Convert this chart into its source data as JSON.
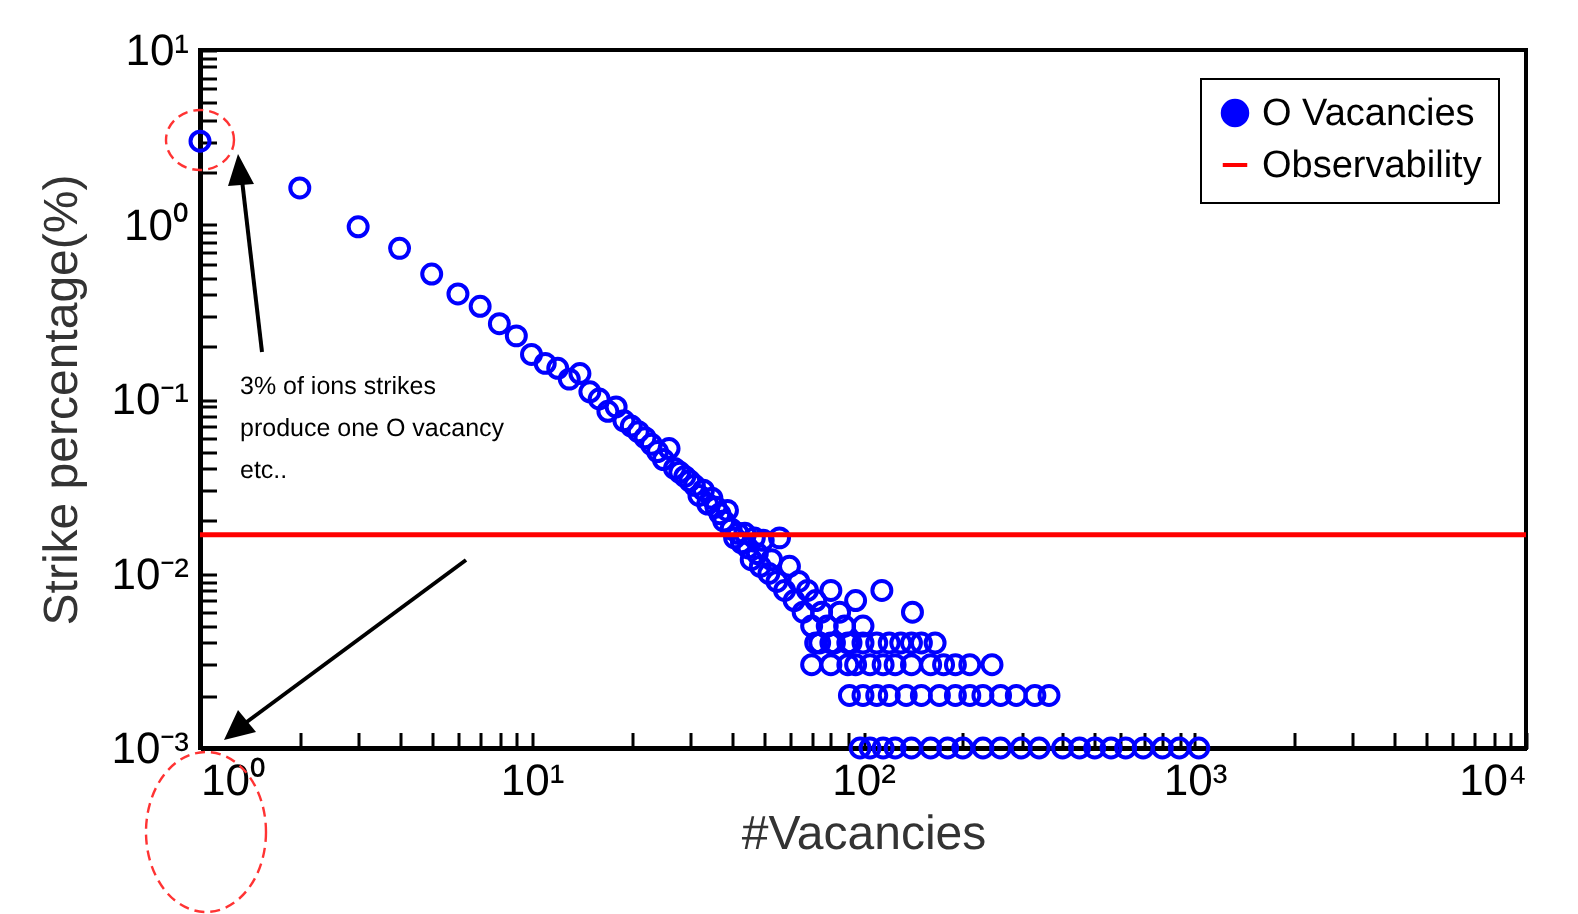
{
  "chart_data": {
    "type": "scatter",
    "xlabel": "#Vacancies",
    "ylabel": "Strike percentage(%)",
    "log": "xy",
    "marker": "circle",
    "legend": "top right",
    "grid": false,
    "xlim": [
      1,
      10000
    ],
    "ylim": [
      0.001,
      10
    ],
    "xticks": [
      {
        "value": 1,
        "label": "10⁰"
      },
      {
        "value": 2,
        "label": null
      },
      {
        "value": 3,
        "label": null
      },
      {
        "value": 4,
        "label": null
      },
      {
        "value": 5,
        "label": null
      },
      {
        "value": 6,
        "label": null
      },
      {
        "value": 7,
        "label": null
      },
      {
        "value": 8,
        "label": null
      },
      {
        "value": 9,
        "label": null
      },
      {
        "value": 10,
        "label": "10¹"
      },
      {
        "value": 20,
        "label": null
      },
      {
        "value": 30,
        "label": null
      },
      {
        "value": 40,
        "label": null
      },
      {
        "value": 50,
        "label": null
      },
      {
        "value": 60,
        "label": null
      },
      {
        "value": 70,
        "label": null
      },
      {
        "value": 80,
        "label": null
      },
      {
        "value": 90,
        "label": null
      },
      {
        "value": 100,
        "label": "10²"
      },
      {
        "value": 200,
        "label": null
      },
      {
        "value": 300,
        "label": null
      },
      {
        "value": 400,
        "label": null
      },
      {
        "value": 500,
        "label": null
      },
      {
        "value": 600,
        "label": null
      },
      {
        "value": 700,
        "label": null
      },
      {
        "value": 800,
        "label": null
      },
      {
        "value": 900,
        "label": null
      },
      {
        "value": 1000,
        "label": "10³"
      },
      {
        "value": 2000,
        "label": null
      },
      {
        "value": 3000,
        "label": null
      },
      {
        "value": 4000,
        "label": null
      },
      {
        "value": 5000,
        "label": null
      },
      {
        "value": 6000,
        "label": null
      },
      {
        "value": 7000,
        "label": null
      },
      {
        "value": 8000,
        "label": null
      },
      {
        "value": 9000,
        "label": null
      },
      {
        "value": 10000,
        "label": "10⁴"
      }
    ],
    "yticks": [
      {
        "value": 0.001,
        "label": "10⁻³"
      },
      {
        "value": 0.002,
        "label": null
      },
      {
        "value": 0.003,
        "label": null
      },
      {
        "value": 0.004,
        "label": null
      },
      {
        "value": 0.005,
        "label": null
      },
      {
        "value": 0.006,
        "label": null
      },
      {
        "value": 0.007,
        "label": null
      },
      {
        "value": 0.008,
        "label": null
      },
      {
        "value": 0.009,
        "label": null
      },
      {
        "value": 0.01,
        "label": "10⁻²"
      },
      {
        "value": 0.02,
        "label": null
      },
      {
        "value": 0.03,
        "label": null
      },
      {
        "value": 0.04,
        "label": null
      },
      {
        "value": 0.05,
        "label": null
      },
      {
        "value": 0.06,
        "label": null
      },
      {
        "value": 0.07,
        "label": null
      },
      {
        "value": 0.08,
        "label": null
      },
      {
        "value": 0.09,
        "label": null
      },
      {
        "value": 0.1,
        "label": "10⁻¹"
      },
      {
        "value": 0.2,
        "label": null
      },
      {
        "value": 0.3,
        "label": null
      },
      {
        "value": 0.4,
        "label": null
      },
      {
        "value": 0.5,
        "label": null
      },
      {
        "value": 0.6,
        "label": null
      },
      {
        "value": 0.7,
        "label": null
      },
      {
        "value": 0.8,
        "label": null
      },
      {
        "value": 0.9,
        "label": null
      },
      {
        "value": 1,
        "label": "10⁰"
      },
      {
        "value": 2,
        "label": null
      },
      {
        "value": 3,
        "label": null
      },
      {
        "value": 4,
        "label": null
      },
      {
        "value": 5,
        "label": null
      },
      {
        "value": 6,
        "label": null
      },
      {
        "value": 7,
        "label": null
      },
      {
        "value": 8,
        "label": null
      },
      {
        "value": 9,
        "label": null
      },
      {
        "value": 10,
        "label": "10¹"
      }
    ],
    "x": [
      1,
      2,
      3,
      4,
      5,
      6,
      7,
      8,
      9,
      10,
      11,
      12,
      13,
      14,
      15,
      16,
      17,
      18,
      19,
      20,
      21,
      22,
      23,
      24,
      25,
      26,
      27,
      28,
      29,
      30,
      31,
      32,
      33,
      34,
      35,
      36,
      37,
      38,
      39,
      40,
      41,
      42,
      43,
      44,
      45,
      46,
      47,
      48,
      49,
      50,
      52,
      53,
      55,
      56,
      58,
      60,
      62,
      64,
      66,
      68,
      70,
      72,
      74,
      75,
      78,
      80,
      82,
      85,
      88,
      90,
      92,
      95,
      100,
      114,
      141,
      72,
      80,
      90,
      100,
      110,
      120,
      130,
      140,
      150,
      165,
      70,
      80,
      95,
      105,
      115,
      125,
      140,
      160,
      175,
      190,
      210,
      245,
      91,
      100,
      110,
      120,
      135,
      150,
      170,
      190,
      210,
      230,
      260,
      290,
      330,
      364,
      98,
      105,
      115,
      125,
      140,
      160,
      180,
      200,
      230,
      260,
      300,
      340,
      400,
      450,
      500,
      560,
      620,
      700,
      800,
      900,
      1030
    ],
    "series": [
      {
        "name": "O Vacancies",
        "color": "#0000ff",
        "values": [
          3,
          1.62,
          0.97,
          0.73,
          0.52,
          0.4,
          0.34,
          0.27,
          0.23,
          0.18,
          0.16,
          0.15,
          0.13,
          0.14,
          0.11,
          0.1,
          0.085,
          0.09,
          0.075,
          0.07,
          0.065,
          0.06,
          0.055,
          0.05,
          0.045,
          0.052,
          0.04,
          0.038,
          0.036,
          0.034,
          0.032,
          0.028,
          0.03,
          0.025,
          0.027,
          0.024,
          0.022,
          0.02,
          0.023,
          0.018,
          0.016,
          0.017,
          0.015,
          0.017,
          0.014,
          0.012,
          0.016,
          0.013,
          0.011,
          0.0155,
          0.01,
          0.012,
          0.009,
          0.016,
          0.008,
          0.011,
          0.007,
          0.009,
          0.006,
          0.008,
          0.005,
          0.007,
          0.004,
          0.006,
          0.005,
          0.008,
          0.004,
          0.006,
          0.005,
          0.003,
          0.004,
          0.007,
          0.005,
          0.008,
          0.006,
          0.004,
          0.004,
          0.004,
          0.004,
          0.004,
          0.004,
          0.004,
          0.004,
          0.004,
          0.004,
          0.003,
          0.003,
          0.003,
          0.003,
          0.003,
          0.003,
          0.003,
          0.003,
          0.003,
          0.003,
          0.003,
          0.003,
          0.002,
          0.002,
          0.002,
          0.002,
          0.002,
          0.002,
          0.002,
          0.002,
          0.002,
          0.002,
          0.002,
          0.002,
          0.002,
          0.002,
          0.001,
          0.001,
          0.001,
          0.001,
          0.001,
          0.001,
          0.001,
          0.001,
          0.001,
          0.001,
          0.001,
          0.001,
          0.001,
          0.001,
          0.001,
          0.001,
          0.001,
          0.001,
          0.001,
          0.001,
          0.001
        ]
      }
    ],
    "ref_lines": [
      {
        "axis": "y",
        "value": 0.0167,
        "label": "Observability",
        "color": "#ff0000"
      }
    ],
    "annotations": [
      "3% of ions strikes\nproduce one O vacancy\netc.."
    ]
  }
}
